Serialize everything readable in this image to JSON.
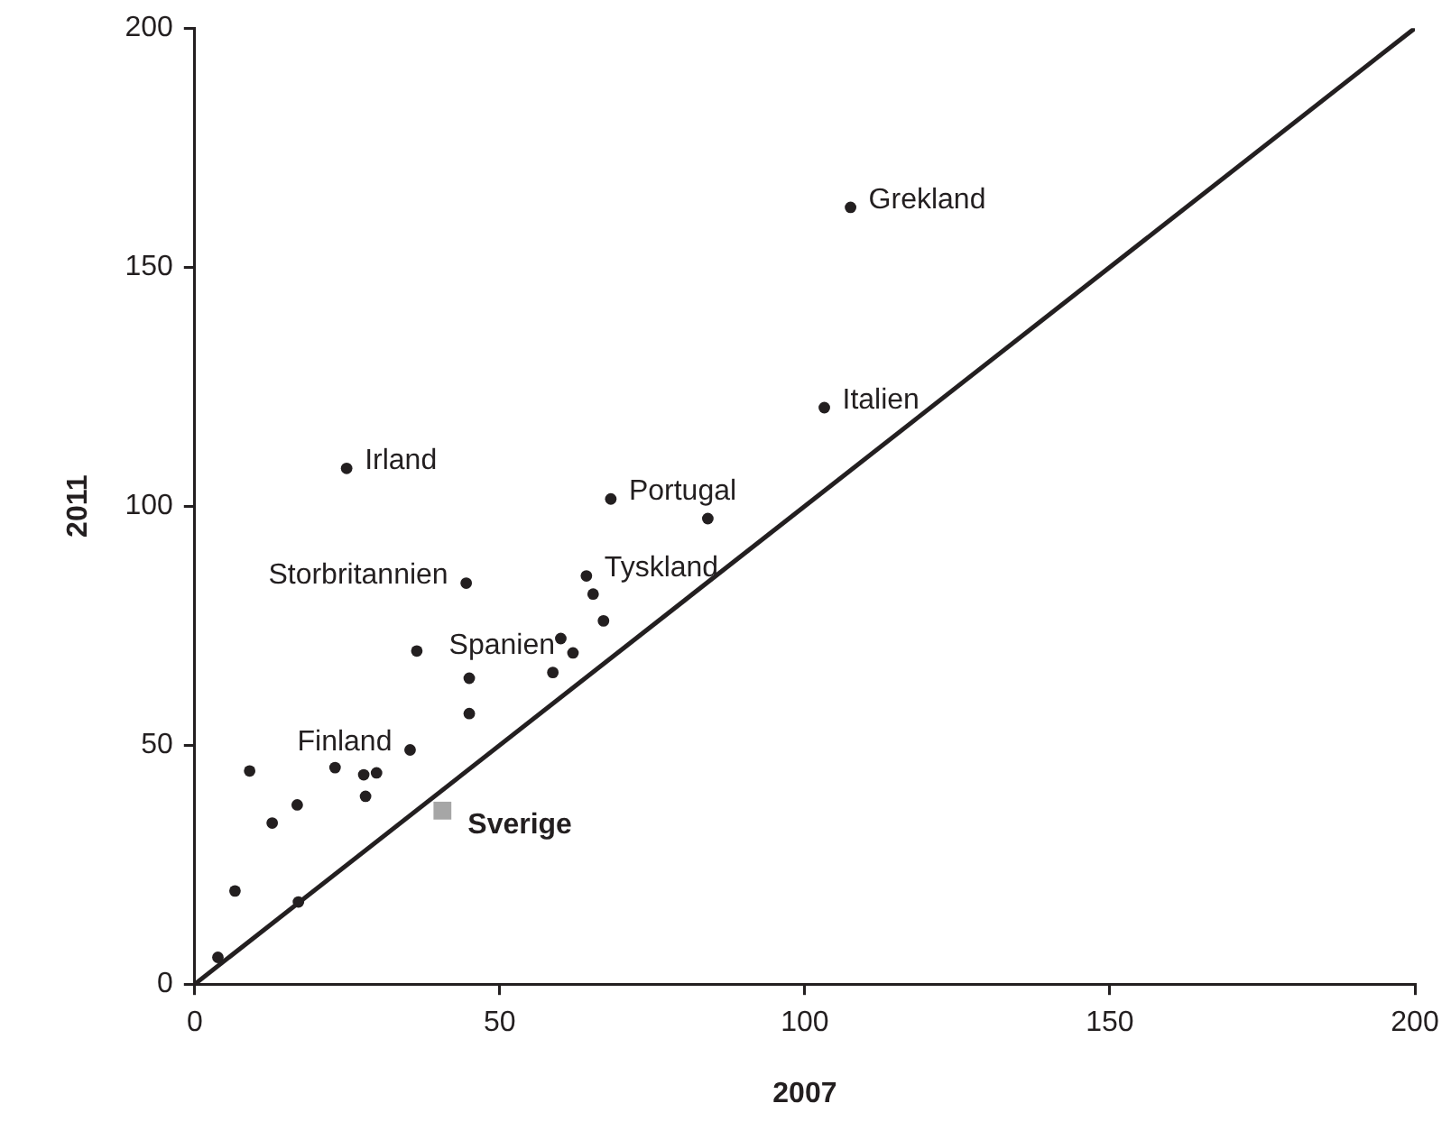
{
  "chart_data": {
    "type": "scatter",
    "xlabel": "2007",
    "ylabel": "2011",
    "xlim": [
      0,
      200
    ],
    "ylim": [
      0,
      200
    ],
    "xticks": [
      0,
      50,
      100,
      150,
      200
    ],
    "yticks": [
      0,
      50,
      100,
      150,
      200
    ],
    "grid": false,
    "legend": false,
    "marker": "circle",
    "series": [
      {
        "color": "#231f20",
        "x": [
          3.8,
          6.6,
          9,
          12.7,
          16.8,
          17,
          23,
          27.7,
          28,
          29.8,
          35.3,
          36.4,
          44.5,
          45,
          45,
          58.7,
          60,
          62,
          64.2,
          65.3,
          67,
          68.2,
          84.1,
          103.2,
          107.5,
          24.9
        ],
        "values": [
          5.6,
          19.5,
          44.6,
          33.7,
          37.5,
          17.2,
          45.3,
          43.8,
          39.3,
          44.2,
          49,
          69.7,
          83.9,
          64,
          56.6,
          65.2,
          72.3,
          69.3,
          85.4,
          81.6,
          76,
          101.5,
          97.4,
          120.6,
          162.5,
          107.9
        ]
      },
      {
        "name": "Sverige",
        "color": "#a6a6a6",
        "marker": "square",
        "x": [
          40.6
        ],
        "values": [
          36.3
        ]
      },
      {
        "type": "line",
        "color": "#231f20",
        "marker": "none",
        "line_style": "solid",
        "x": [
          0,
          200
        ],
        "values": [
          0,
          200
        ]
      }
    ],
    "annotations": [
      {
        "text": "Grekland",
        "x": 107.5,
        "y": 162.5
      },
      {
        "text": "Italien",
        "x": 103.2,
        "y": 120.6
      },
      {
        "text": "Irland",
        "x": 24.9,
        "y": 107.9
      },
      {
        "text": "Portugal",
        "x": 68.2,
        "y": 101.5
      },
      {
        "text": "Storbritannien",
        "x": 44.5,
        "y": 83.9
      },
      {
        "text": "Tyskland",
        "x": 64.2,
        "y": 85.4
      },
      {
        "text": "Spanien",
        "x": 62,
        "y": 69.3
      },
      {
        "text": "Finland",
        "x": 35.3,
        "y": 49
      }
    ]
  }
}
